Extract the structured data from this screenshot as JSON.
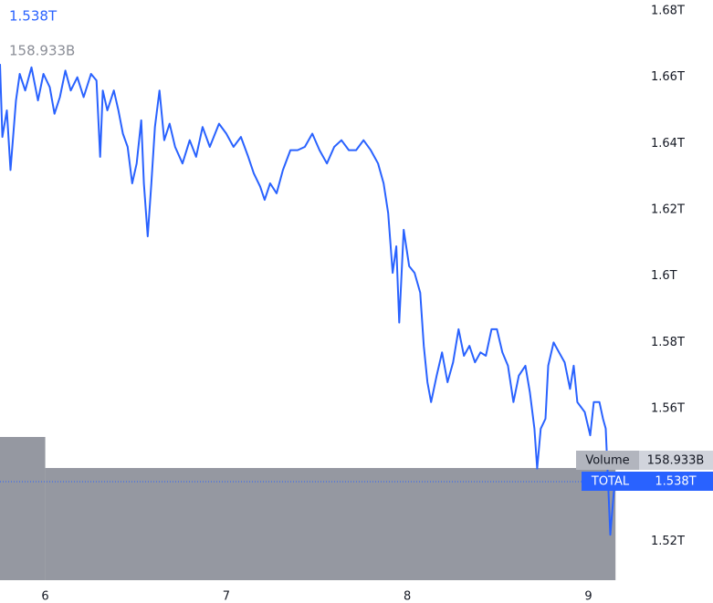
{
  "chart_data": {
    "type": "line",
    "xlim": [
      5.75,
      9.28
    ],
    "xticks": [
      6,
      7,
      8,
      9
    ],
    "ylim": [
      1.5083,
      1.6833
    ],
    "yticks": [
      {
        "value": 1.52,
        "label": "1.52T"
      },
      {
        "value": 1.56,
        "label": "1.56T"
      },
      {
        "value": 1.58,
        "label": "1.58T"
      },
      {
        "value": 1.6,
        "label": "1.6T"
      },
      {
        "value": 1.62,
        "label": "1.62T"
      },
      {
        "value": 1.64,
        "label": "1.64T"
      },
      {
        "value": 1.66,
        "label": "1.66T"
      },
      {
        "value": 1.68,
        "label": "1.68T"
      }
    ],
    "y2lim": [
      0,
      822
    ],
    "y2ticks": [],
    "grid": false,
    "series": [
      {
        "name": "TOTAL",
        "color": "#2962ff",
        "last_label": "1.538T",
        "x": [
          5.75,
          5.763,
          5.788,
          5.808,
          5.838,
          5.859,
          5.889,
          5.924,
          5.96,
          5.99,
          6.025,
          6.051,
          6.081,
          6.111,
          6.141,
          6.177,
          6.212,
          6.253,
          6.283,
          6.303,
          6.318,
          6.343,
          6.379,
          6.404,
          6.429,
          6.455,
          6.48,
          6.505,
          6.53,
          6.545,
          6.566,
          6.586,
          6.606,
          6.631,
          6.657,
          6.687,
          6.717,
          6.758,
          6.798,
          6.833,
          6.869,
          6.909,
          6.96,
          7,
          7.04,
          7.081,
          7.121,
          7.152,
          7.187,
          7.212,
          7.242,
          7.278,
          7.313,
          7.354,
          7.394,
          7.434,
          7.475,
          7.515,
          7.556,
          7.596,
          7.636,
          7.677,
          7.717,
          7.758,
          7.798,
          7.838,
          7.869,
          7.894,
          7.919,
          7.939,
          7.955,
          7.98,
          8.01,
          8.04,
          8.071,
          8.091,
          8.111,
          8.131,
          8.162,
          8.192,
          8.222,
          8.253,
          8.283,
          8.313,
          8.343,
          8.374,
          8.404,
          8.434,
          8.465,
          8.495,
          8.525,
          8.556,
          8.586,
          8.616,
          8.652,
          8.677,
          8.702,
          8.717,
          8.737,
          8.763,
          8.778,
          8.808,
          8.838,
          8.869,
          8.899,
          8.919,
          8.939,
          8.98,
          9.01,
          9.03,
          9.061,
          9.081,
          9.096,
          9.111,
          9.121,
          9.141,
          9.157
        ],
        "values": [
          1.664,
          1.642,
          1.65,
          1.632,
          1.653,
          1.661,
          1.656,
          1.663,
          1.653,
          1.661,
          1.657,
          1.649,
          1.654,
          1.662,
          1.656,
          1.66,
          1.654,
          1.661,
          1.659,
          1.636,
          1.656,
          1.65,
          1.656,
          1.65,
          1.643,
          1.639,
          1.628,
          1.634,
          1.647,
          1.628,
          1.612,
          1.628,
          1.645,
          1.656,
          1.641,
          1.646,
          1.639,
          1.634,
          1.641,
          1.636,
          1.645,
          1.639,
          1.646,
          1.643,
          1.639,
          1.642,
          1.636,
          1.631,
          1.627,
          1.623,
          1.628,
          1.625,
          1.632,
          1.638,
          1.638,
          1.639,
          1.643,
          1.638,
          1.634,
          1.639,
          1.641,
          1.638,
          1.638,
          1.641,
          1.638,
          1.634,
          1.628,
          1.619,
          1.601,
          1.609,
          1.586,
          1.614,
          1.603,
          1.601,
          1.595,
          1.579,
          1.568,
          1.562,
          1.57,
          1.577,
          1.568,
          1.574,
          1.584,
          1.576,
          1.579,
          1.574,
          1.577,
          1.576,
          1.584,
          1.584,
          1.577,
          1.573,
          1.562,
          1.57,
          1.573,
          1.565,
          1.554,
          1.542,
          1.554,
          1.557,
          1.573,
          1.58,
          1.577,
          1.574,
          1.566,
          1.573,
          1.562,
          1.559,
          1.552,
          1.562,
          1.562,
          1.557,
          1.554,
          1.535,
          1.522,
          1.535,
          1.538
        ]
      },
      {
        "name": "Volume",
        "color": "#9598a1",
        "axis": "y2",
        "last_label": "158.933B",
        "bins": [
          5.75,
          6,
          9.15
        ],
        "values": [
          202.9,
          158.933
        ]
      }
    ]
  }
}
